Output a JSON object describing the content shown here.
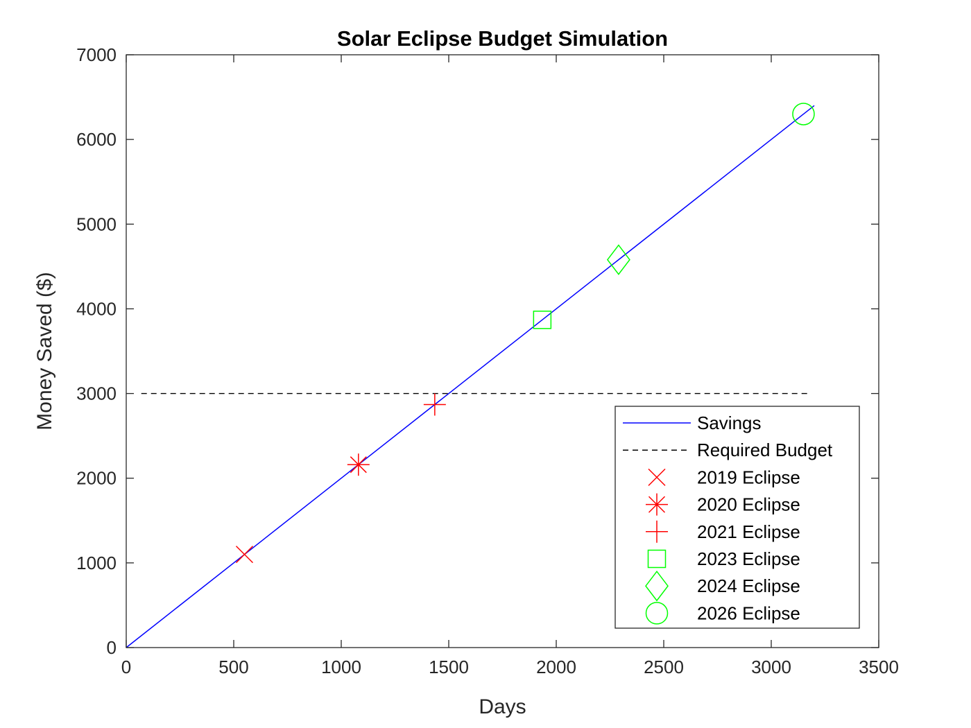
{
  "chart_data": {
    "type": "line",
    "title": "Solar Eclipse Budget Simulation",
    "xlabel": "Days",
    "ylabel": "Money Saved ($)",
    "xlim": [
      0,
      3500
    ],
    "ylim": [
      0,
      7000
    ],
    "xticks": [
      "0",
      "500",
      "1000",
      "1500",
      "2000",
      "2500",
      "3000",
      "3500"
    ],
    "yticks": [
      "0",
      "1000",
      "2000",
      "3000",
      "4000",
      "5000",
      "6000",
      "7000"
    ],
    "grid": false,
    "legend_position": "bottom-right",
    "series": [
      {
        "name": "Savings",
        "style": "solid",
        "color": "#0000ff",
        "x": [
          0,
          3200
        ],
        "y": [
          0,
          6400
        ]
      },
      {
        "name": "Required Budget",
        "style": "dashed",
        "color": "#000000",
        "x": [
          70,
          3180
        ],
        "y": [
          3000,
          3000
        ]
      }
    ],
    "markers": [
      {
        "name": "2019 Eclipse",
        "marker": "x",
        "color": "#ff0000",
        "x": 550,
        "y": 1100
      },
      {
        "name": "2020 Eclipse",
        "marker": "asterisk",
        "color": "#ff0000",
        "x": 1080,
        "y": 2160
      },
      {
        "name": "2021 Eclipse",
        "marker": "plus",
        "color": "#ff0000",
        "x": 1435,
        "y": 2870
      },
      {
        "name": "2023 Eclipse",
        "marker": "square",
        "color": "#00ff00",
        "x": 1935,
        "y": 3870
      },
      {
        "name": "2024 Eclipse",
        "marker": "diamond",
        "color": "#00ff00",
        "x": 2290,
        "y": 4580
      },
      {
        "name": "2026 Eclipse",
        "marker": "circle",
        "color": "#00ff00",
        "x": 3150,
        "y": 6300
      }
    ]
  }
}
